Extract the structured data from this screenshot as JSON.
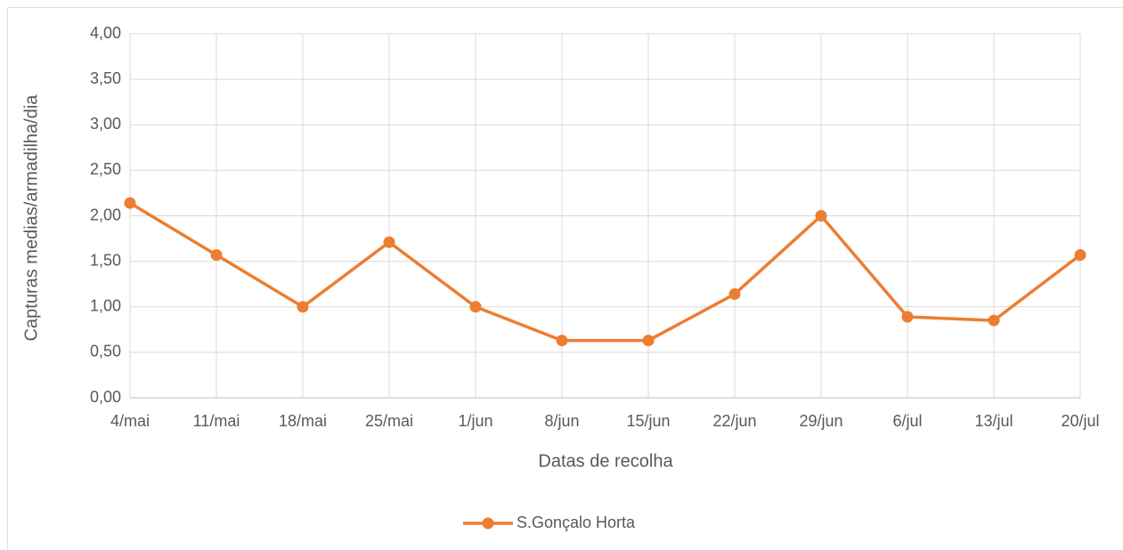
{
  "chart_data": {
    "type": "line",
    "x_label": "Datas de recolha",
    "y_label": "Capturas medias/armadilha/dia",
    "categories": [
      "4/mai",
      "11/mai",
      "18/mai",
      "25/mai",
      "1/jun",
      "8/jun",
      "15/jun",
      "22/jun",
      "29/jun",
      "6/jul",
      "13/jul",
      "20/jul"
    ],
    "series": [
      {
        "name": "S.Gonçalo Horta",
        "color": "#ed7d31",
        "values": [
          2.14,
          1.57,
          1.0,
          1.71,
          1.0,
          0.63,
          0.63,
          1.14,
          2.0,
          0.89,
          0.85,
          1.57
        ]
      }
    ],
    "ylim": [
      0,
      4
    ],
    "yticks": [
      {
        "value": 0,
        "label": "0,00"
      },
      {
        "value": 0.5,
        "label": "0,50"
      },
      {
        "value": 1,
        "label": "1,00"
      },
      {
        "value": 1.5,
        "label": "1,50"
      },
      {
        "value": 2,
        "label": "2,00"
      },
      {
        "value": 2.5,
        "label": "2,50"
      },
      {
        "value": 3,
        "label": "3,00"
      },
      {
        "value": 3.5,
        "label": "3,50"
      },
      {
        "value": 4,
        "label": "4,00"
      }
    ],
    "grid": true,
    "legend": "bottom"
  }
}
